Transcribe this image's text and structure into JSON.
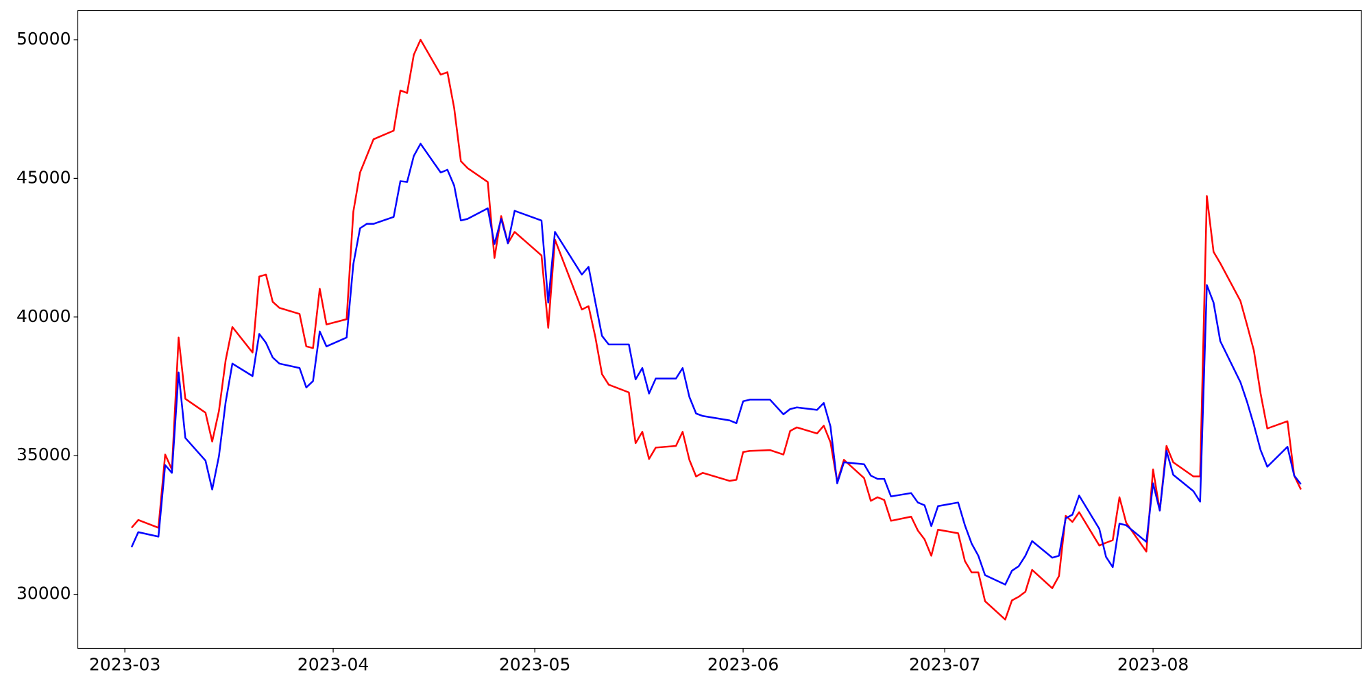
{
  "chart_data": {
    "type": "line",
    "x": [
      "2023-03-02",
      "2023-03-03",
      "2023-03-06",
      "2023-03-07",
      "2023-03-08",
      "2023-03-09",
      "2023-03-10",
      "2023-03-13",
      "2023-03-14",
      "2023-03-15",
      "2023-03-16",
      "2023-03-17",
      "2023-03-20",
      "2023-03-21",
      "2023-03-22",
      "2023-03-23",
      "2023-03-24",
      "2023-03-27",
      "2023-03-28",
      "2023-03-29",
      "2023-03-30",
      "2023-03-31",
      "2023-04-03",
      "2023-04-04",
      "2023-04-05",
      "2023-04-06",
      "2023-04-07",
      "2023-04-10",
      "2023-04-11",
      "2023-04-12",
      "2023-04-13",
      "2023-04-14",
      "2023-04-17",
      "2023-04-18",
      "2023-04-19",
      "2023-04-20",
      "2023-04-21",
      "2023-04-24",
      "2023-04-25",
      "2023-04-26",
      "2023-04-27",
      "2023-04-28",
      "2023-05-02",
      "2023-05-03",
      "2023-05-04",
      "2023-05-08",
      "2023-05-09",
      "2023-05-10",
      "2023-05-11",
      "2023-05-12",
      "2023-05-15",
      "2023-05-16",
      "2023-05-17",
      "2023-05-18",
      "2023-05-19",
      "2023-05-22",
      "2023-05-23",
      "2023-05-24",
      "2023-05-25",
      "2023-05-26",
      "2023-05-30",
      "2023-05-31",
      "2023-06-01",
      "2023-06-02",
      "2023-06-05",
      "2023-06-07",
      "2023-06-08",
      "2023-06-09",
      "2023-06-12",
      "2023-06-13",
      "2023-06-14",
      "2023-06-15",
      "2023-06-16",
      "2023-06-19",
      "2023-06-20",
      "2023-06-21",
      "2023-06-22",
      "2023-06-23",
      "2023-06-26",
      "2023-06-27",
      "2023-06-28",
      "2023-06-29",
      "2023-06-30",
      "2023-07-03",
      "2023-07-04",
      "2023-07-05",
      "2023-07-06",
      "2023-07-07",
      "2023-07-10",
      "2023-07-11",
      "2023-07-12",
      "2023-07-13",
      "2023-07-14",
      "2023-07-17",
      "2023-07-18",
      "2023-07-19",
      "2023-07-20",
      "2023-07-21",
      "2023-07-24",
      "2023-07-25",
      "2023-07-26",
      "2023-07-27",
      "2023-07-28",
      "2023-07-31",
      "2023-08-01",
      "2023-08-02",
      "2023-08-03",
      "2023-08-04",
      "2023-08-07",
      "2023-08-08",
      "2023-08-09",
      "2023-08-10",
      "2023-08-11",
      "2023-08-14",
      "2023-08-15",
      "2023-08-16",
      "2023-08-17",
      "2023-08-18",
      "2023-08-21",
      "2023-08-22",
      "2023-08-23"
    ],
    "series": [
      {
        "color": "#ff0000",
        "values": [
          32400,
          32680,
          32400,
          35040,
          34500,
          39260,
          37050,
          36550,
          35510,
          36610,
          38440,
          39640,
          38720,
          41460,
          41530,
          40550,
          40330,
          40110,
          38940,
          38880,
          41020,
          39730,
          39920,
          43800,
          45210,
          45810,
          46410,
          46720,
          48170,
          48080,
          49460,
          50000,
          48740,
          48830,
          47540,
          45620,
          45370,
          44870,
          42130,
          43640,
          42660,
          43070,
          42220,
          39610,
          42790,
          40270,
          40390,
          39290,
          37940,
          37560,
          37280,
          35450,
          35860,
          34880,
          35290,
          35350,
          35860,
          34850,
          34250,
          34380,
          34090,
          34130,
          35130,
          35170,
          35200,
          35040,
          35890,
          36020,
          35800,
          36080,
          35480,
          34060,
          34850,
          34190,
          33370,
          33500,
          33400,
          32650,
          32800,
          32300,
          31980,
          31390,
          32330,
          32200,
          31200,
          30790,
          30790,
          29750,
          29090,
          29780,
          29910,
          30090,
          30880,
          30220,
          30660,
          32830,
          32610,
          32960,
          31760,
          31860,
          31950,
          33500,
          32580,
          31540,
          34500,
          33020,
          35350,
          34760,
          34250,
          34250,
          44360,
          42350,
          41940,
          40580,
          39700,
          38790,
          37240,
          35980,
          36240,
          34280,
          33780
        ]
      },
      {
        "color": "#0000ff",
        "values": [
          31700,
          32240,
          32080,
          34660,
          34380,
          38000,
          35640,
          34820,
          33780,
          34980,
          36930,
          38320,
          37870,
          39390,
          39070,
          38540,
          38320,
          38160,
          37460,
          37690,
          39480,
          38940,
          39260,
          41910,
          43200,
          43360,
          43360,
          43610,
          44900,
          44870,
          45810,
          46250,
          45210,
          45310,
          44740,
          43480,
          43540,
          43920,
          42630,
          43540,
          42660,
          43830,
          43480,
          40520,
          43070,
          41530,
          41810,
          40550,
          39320,
          39010,
          39010,
          37750,
          38160,
          37240,
          37780,
          37780,
          38160,
          37120,
          36520,
          36430,
          36270,
          36170,
          36960,
          37020,
          37020,
          36490,
          36680,
          36740,
          36650,
          36900,
          36050,
          34000,
          34760,
          34690,
          34280,
          34160,
          34160,
          33530,
          33650,
          33310,
          33210,
          32460,
          33180,
          33310,
          32490,
          31830,
          31390,
          30690,
          30350,
          30850,
          31010,
          31390,
          31920,
          31320,
          31390,
          32740,
          32870,
          33560,
          32360,
          31350,
          30980,
          32550,
          32490,
          31890,
          34000,
          33020,
          35170,
          34310,
          33720,
          33340,
          41150,
          40520,
          39130,
          37650,
          36930,
          36110,
          35200,
          34600,
          35320,
          34280,
          33970
        ]
      }
    ],
    "xlim": [
      "2023-02-22",
      "2023-09-01"
    ],
    "xticks": [
      {
        "value": "2023-03-01",
        "label": "2023-03"
      },
      {
        "value": "2023-04-01",
        "label": "2023-04"
      },
      {
        "value": "2023-05-01",
        "label": "2023-05"
      },
      {
        "value": "2023-06-01",
        "label": "2023-06"
      },
      {
        "value": "2023-07-01",
        "label": "2023-07"
      },
      {
        "value": "2023-08-01",
        "label": "2023-08"
      }
    ],
    "ylim": [
      28050,
      51050
    ],
    "yticks": [
      30000,
      35000,
      40000,
      45000,
      50000
    ],
    "grid": false
  }
}
